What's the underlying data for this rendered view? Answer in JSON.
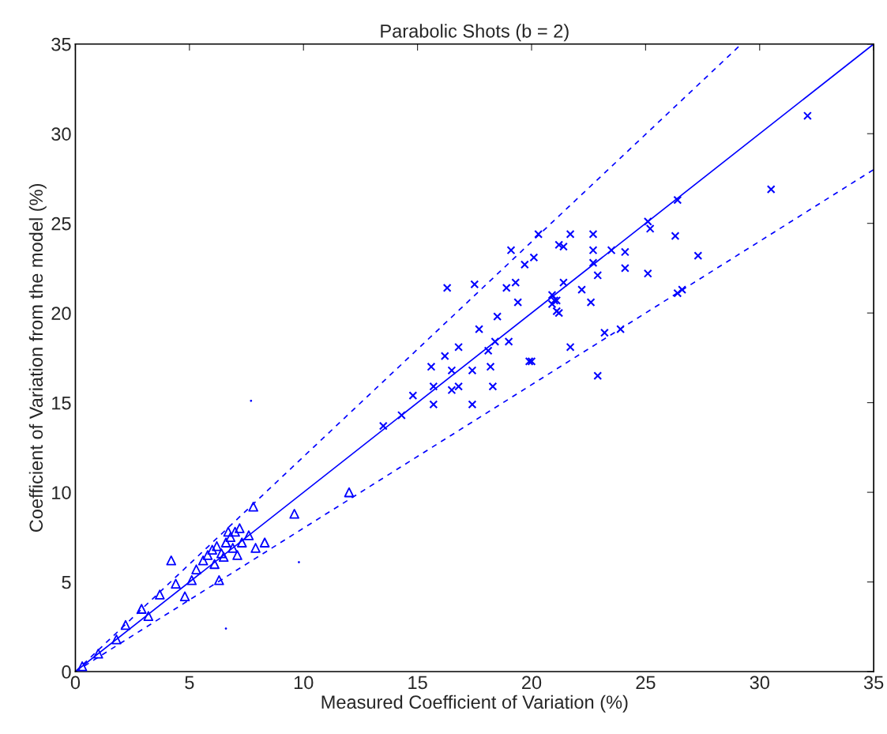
{
  "chart_data": {
    "type": "scatter",
    "title": "Parabolic Shots (b = 2)",
    "xlabel": "Measured Coefficient of Variation (%)",
    "ylabel": "Coefficient of Variation from the model (%)",
    "xlim": [
      0,
      35
    ],
    "ylim": [
      0,
      35
    ],
    "xticks": [
      0,
      5,
      10,
      15,
      20,
      25,
      30,
      35
    ],
    "yticks": [
      0,
      5,
      10,
      15,
      20,
      25,
      30,
      35
    ],
    "grid": false,
    "legend": false,
    "series": [
      {
        "marker": "cross",
        "color": "#0000ff",
        "x": [
          30.5,
          32.1,
          27.3,
          26.3,
          26.4,
          26.4,
          26.6,
          25.1,
          25.2,
          25.1,
          23.9,
          24.1,
          24.1,
          23.5,
          23.2,
          22.9,
          22.7,
          22.7,
          22.7,
          22.9,
          22.6,
          22.2,
          21.7,
          21.4,
          21.7,
          21.1,
          20.9,
          21.1,
          20.9,
          20.0,
          20.3,
          19.1,
          20.1,
          19.7,
          21.2,
          21.4,
          21.0,
          21.2,
          19.4,
          18.5,
          19.3,
          18.9,
          17.5,
          16.3,
          17.7,
          18.4,
          19.0,
          16.8,
          16.2,
          15.6,
          16.5,
          17.4,
          18.2,
          19.9,
          18.3,
          16.5,
          15.7,
          14.8,
          15.7,
          17.4,
          14.3,
          13.5,
          16.8,
          18.1
        ],
        "values": [
          26.9,
          31.0,
          23.2,
          24.3,
          26.3,
          21.1,
          21.3,
          25.1,
          24.7,
          22.2,
          19.1,
          23.4,
          22.5,
          23.5,
          18.9,
          16.5,
          24.4,
          23.5,
          22.8,
          22.1,
          20.6,
          21.3,
          24.4,
          23.7,
          18.1,
          20.7,
          21.0,
          20.1,
          20.5,
          17.3,
          24.4,
          23.5,
          23.1,
          22.7,
          23.8,
          21.7,
          20.7,
          20.0,
          20.6,
          19.8,
          21.7,
          21.4,
          21.6,
          21.4,
          19.1,
          18.4,
          18.4,
          18.1,
          17.6,
          17.0,
          16.8,
          16.8,
          17.0,
          17.3,
          15.9,
          15.7,
          15.9,
          15.4,
          14.9,
          14.9,
          14.3,
          13.7,
          15.9,
          17.9
        ]
      },
      {
        "marker": "triangle",
        "color": "#0000ff",
        "x": [
          4.2,
          5.1,
          4.4,
          6.3,
          5.8,
          6.0,
          6.2,
          6.4,
          6.6,
          6.8,
          7.0,
          7.2,
          6.5,
          7.1,
          7.6,
          7.8,
          8.3,
          7.9,
          9.6,
          12.0,
          5.6,
          6.1,
          6.9,
          7.3,
          3.7,
          2.9,
          3.2,
          1.0,
          0.3,
          1.8,
          2.2,
          4.8,
          6.7,
          5.3
        ],
        "values": [
          6.2,
          5.1,
          4.9,
          5.1,
          6.5,
          6.8,
          7.0,
          6.6,
          7.2,
          7.5,
          7.8,
          8.0,
          6.4,
          6.5,
          7.6,
          9.2,
          7.2,
          6.9,
          8.8,
          10.0,
          6.2,
          6.0,
          6.9,
          7.2,
          4.3,
          3.5,
          3.1,
          1.0,
          0.3,
          1.8,
          2.6,
          4.2,
          7.8,
          5.7
        ]
      },
      {
        "marker": "circle",
        "color": "#0000ff",
        "x": [
          7.7,
          9.8,
          6.6
        ],
        "values": [
          15.1,
          6.1,
          2.4
        ]
      },
      {
        "type": "line",
        "line_style": "solid",
        "color": "#0000ff",
        "x": [
          0,
          35
        ],
        "values": [
          0,
          35
        ]
      },
      {
        "type": "line",
        "line_style": "dashed",
        "color": "#0000ff",
        "x": [
          0,
          29.2
        ],
        "values": [
          0,
          35
        ]
      },
      {
        "type": "line",
        "line_style": "dashed",
        "color": "#0000ff",
        "x": [
          0,
          35
        ],
        "values": [
          0,
          28
        ]
      }
    ]
  }
}
